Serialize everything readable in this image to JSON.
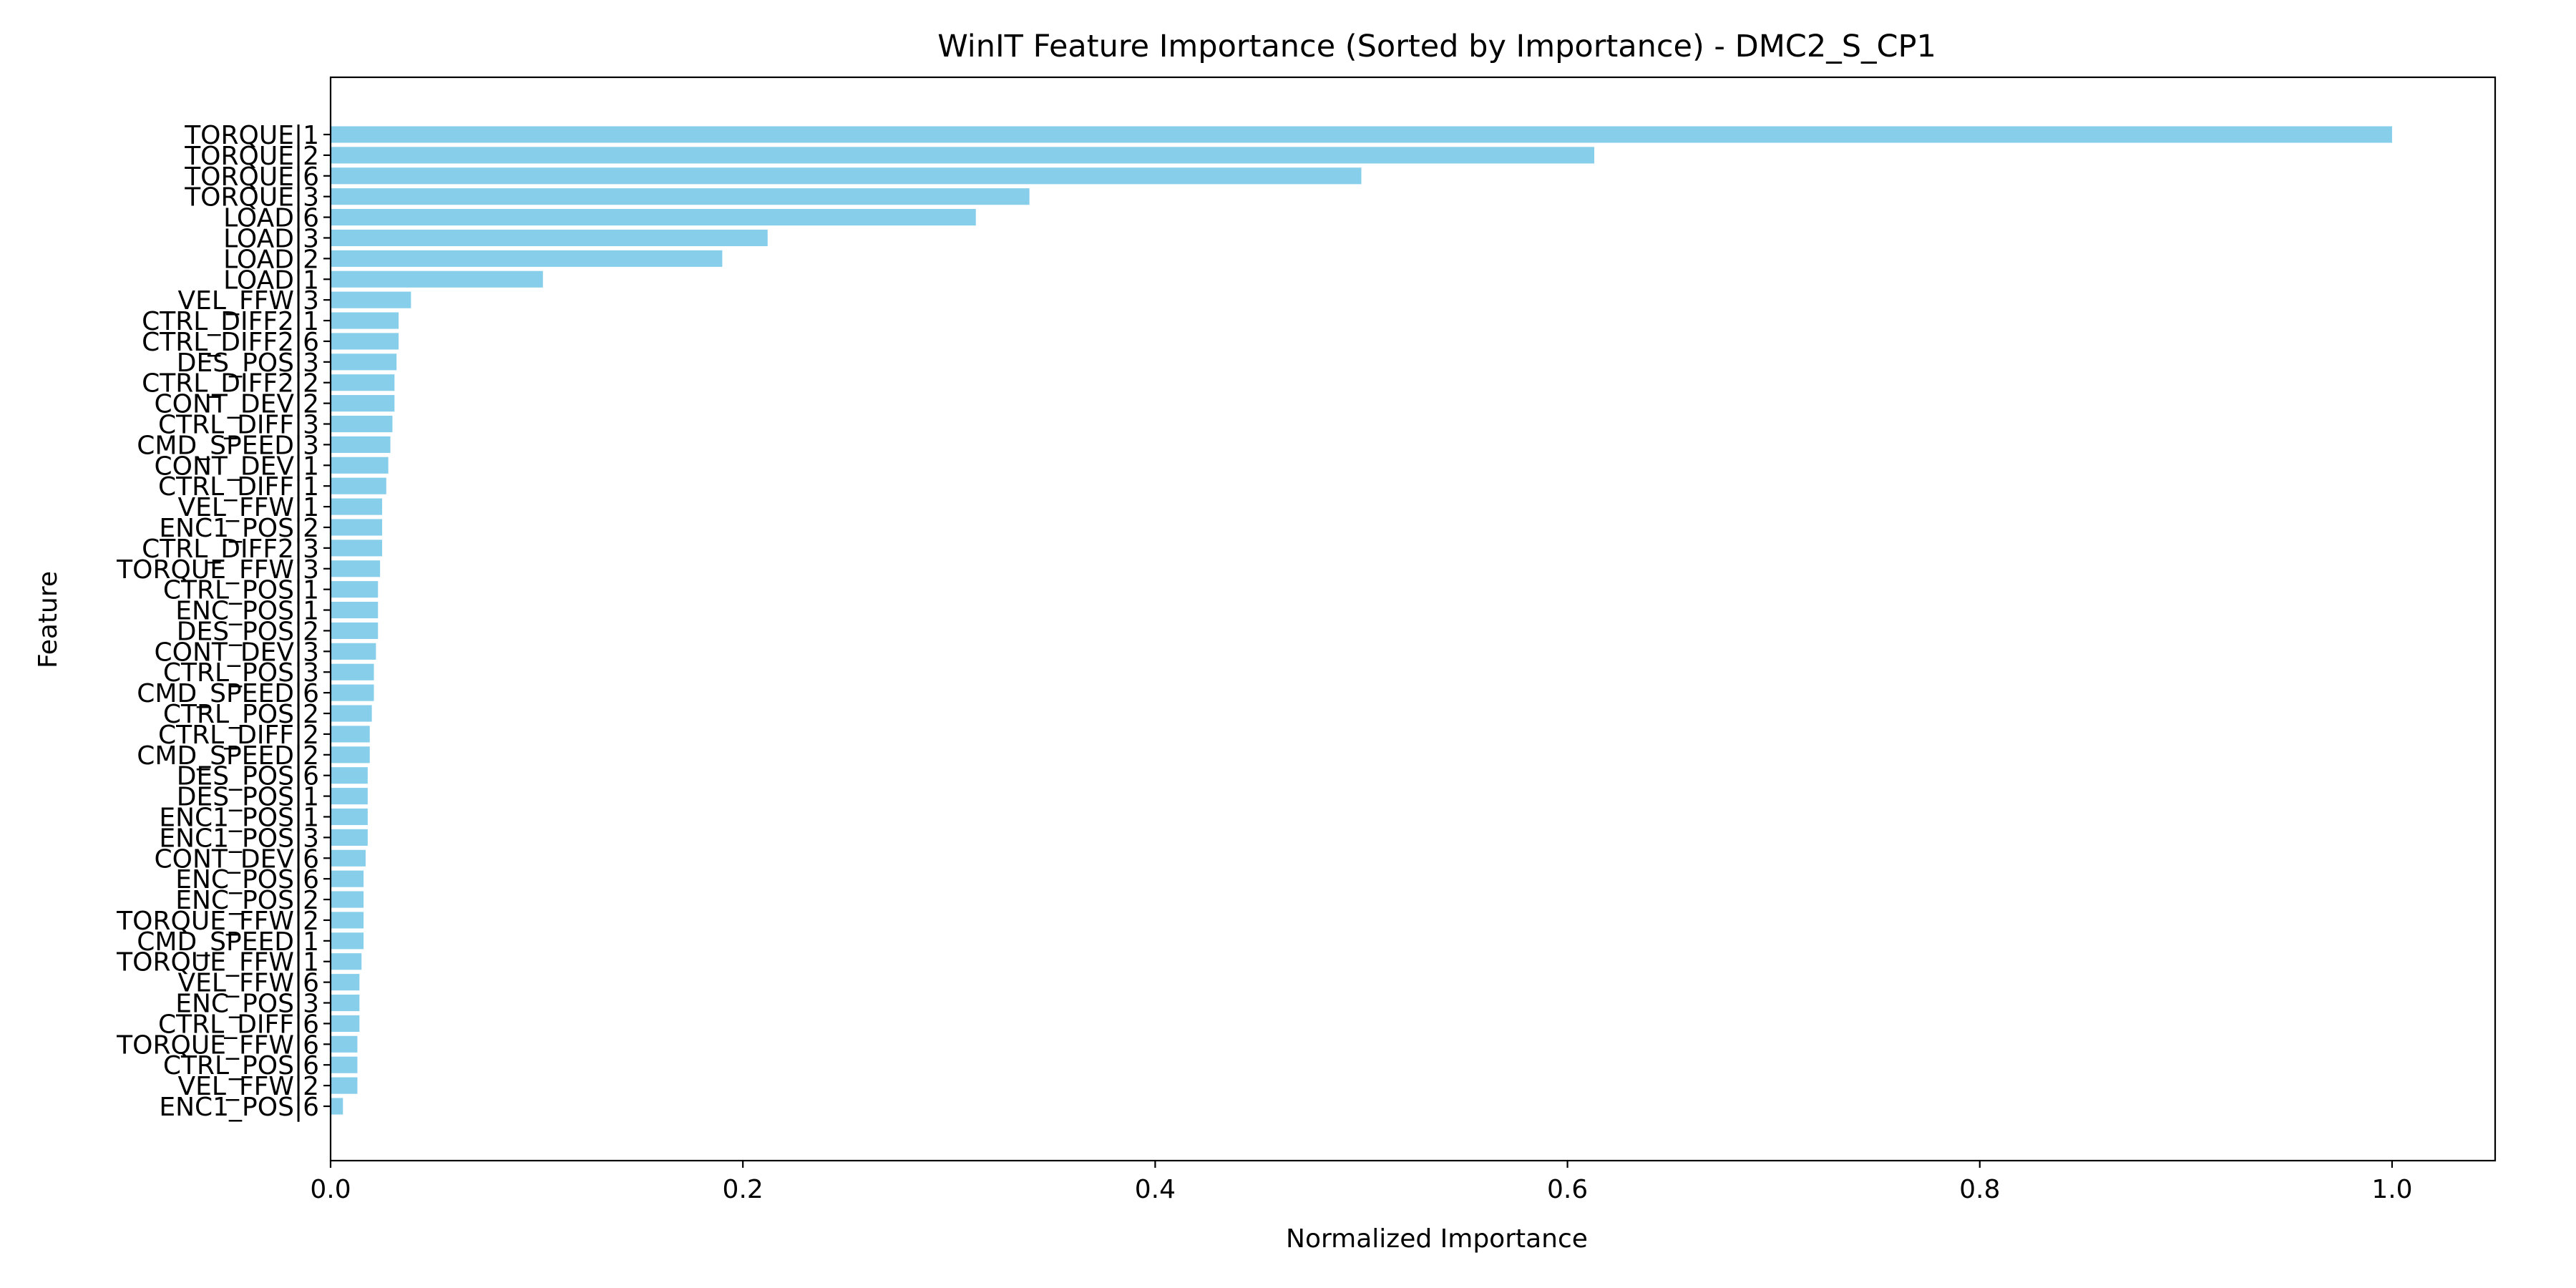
{
  "chart_data": {
    "type": "bar",
    "orientation": "horizontal",
    "title": "WinIT Feature Importance (Sorted by Importance) - DMC2_S_CP1",
    "xlabel": "Normalized Importance",
    "ylabel": "Feature",
    "xlim": [
      0,
      1.05
    ],
    "xticks": [
      0.0,
      0.2,
      0.4,
      0.6,
      0.8,
      1.0
    ],
    "xtick_labels": [
      "0.0",
      "0.2",
      "0.4",
      "0.6",
      "0.8",
      "1.0"
    ],
    "grid": false,
    "bar_color": "#87ceeb",
    "categories": [
      "TORQUE|1",
      "TORQUE|2",
      "TORQUE|6",
      "TORQUE|3",
      "LOAD|6",
      "LOAD|3",
      "LOAD|2",
      "LOAD|1",
      "VEL_FFW|3",
      "CTRL_DIFF2|1",
      "CTRL_DIFF2|6",
      "DES_POS|3",
      "CTRL_DIFF2|2",
      "CONT_DEV|2",
      "CTRL_DIFF|3",
      "CMD_SPEED|3",
      "CONT_DEV|1",
      "CTRL_DIFF|1",
      "VEL_FFW|1",
      "ENC1_POS|2",
      "CTRL_DIFF2|3",
      "TORQUE_FFW|3",
      "CTRL_POS|1",
      "ENC_POS|1",
      "DES_POS|2",
      "CONT_DEV|3",
      "CTRL_POS|3",
      "CMD_SPEED|6",
      "CTRL_POS|2",
      "CTRL_DIFF|2",
      "CMD_SPEED|2",
      "DES_POS|6",
      "DES_POS|1",
      "ENC1_POS|1",
      "ENC1_POS|3",
      "CONT_DEV|6",
      "ENC_POS|6",
      "ENC_POS|2",
      "TORQUE_FFW|2",
      "CMD_SPEED|1",
      "TORQUE_FFW|1",
      "VEL_FFW|6",
      "ENC_POS|3",
      "CTRL_DIFF|6",
      "TORQUE_FFW|6",
      "CTRL_POS|6",
      "VEL_FFW|2",
      "ENC1_POS|6"
    ],
    "values": [
      1.0,
      0.613,
      0.5,
      0.339,
      0.313,
      0.212,
      0.19,
      0.103,
      0.039,
      0.033,
      0.033,
      0.032,
      0.031,
      0.031,
      0.03,
      0.029,
      0.028,
      0.027,
      0.025,
      0.025,
      0.025,
      0.024,
      0.023,
      0.023,
      0.023,
      0.022,
      0.021,
      0.021,
      0.02,
      0.019,
      0.019,
      0.018,
      0.018,
      0.018,
      0.018,
      0.017,
      0.016,
      0.016,
      0.016,
      0.016,
      0.015,
      0.014,
      0.014,
      0.014,
      0.013,
      0.013,
      0.013,
      0.006
    ]
  }
}
